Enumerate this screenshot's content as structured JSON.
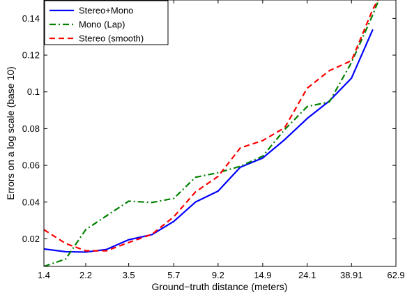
{
  "chart_data": {
    "type": "line",
    "title": "",
    "xlabel": "Ground−truth distance (meters)",
    "ylabel": "Errors on a log scale (base 10)",
    "x_scale": "log",
    "xlim": [
      1.4,
      62.9
    ],
    "ylim": [
      0.005,
      0.15
    ],
    "x_ticks": [
      1.4,
      2.2,
      3.5,
      5.7,
      9.2,
      14.9,
      24.1,
      38.91,
      62.9
    ],
    "x_tick_labels": [
      "1.4",
      "2.2",
      "3.5",
      "5.7",
      "9.2",
      "14.9",
      "24.1",
      "38.91",
      "62.9"
    ],
    "y_ticks": [
      0.02,
      0.04,
      0.06,
      0.08,
      0.1,
      0.12,
      0.14
    ],
    "y_tick_labels": [
      "0.02",
      "0.04",
      "0.06",
      "0.08",
      "0.1",
      "0.12",
      "0.14"
    ],
    "grid": false,
    "legend_position": "top-left",
    "series": [
      {
        "name": "Stereo+Mono",
        "color": "#0000ff",
        "dash": "solid",
        "x": [
          1.4,
          1.77,
          2.2,
          2.75,
          3.5,
          4.5,
          5.7,
          7.2,
          9.2,
          11.7,
          14.9,
          18.9,
          24.1,
          30.6,
          38.91,
          49.0
        ],
        "y": [
          0.0145,
          0.013,
          0.0128,
          0.0142,
          0.0195,
          0.0223,
          0.0295,
          0.04,
          0.046,
          0.059,
          0.064,
          0.074,
          0.0855,
          0.095,
          0.1075,
          0.134
        ]
      },
      {
        "name": "Mono (Lap)",
        "color": "#008000",
        "dash": "dashdot",
        "x": [
          1.4,
          1.77,
          2.2,
          2.75,
          3.5,
          4.5,
          5.7,
          7.2,
          9.2,
          11.7,
          14.9,
          18.9,
          24.1,
          30.6,
          38.91,
          49.0,
          53.0
        ],
        "y": [
          0.005,
          0.009,
          0.025,
          0.0325,
          0.0405,
          0.0398,
          0.042,
          0.0535,
          0.056,
          0.0595,
          0.065,
          0.0795,
          0.092,
          0.0945,
          0.116,
          0.142,
          0.152
        ]
      },
      {
        "name": "Stereo (smooth)",
        "color": "#ff0000",
        "dash": "dashed",
        "x": [
          1.4,
          1.77,
          2.2,
          2.75,
          3.5,
          4.5,
          5.7,
          7.2,
          9.2,
          11.7,
          14.9,
          18.9,
          24.1,
          30.6,
          38.91,
          49.0,
          53.0
        ],
        "y": [
          0.025,
          0.0175,
          0.0135,
          0.0135,
          0.018,
          0.0225,
          0.032,
          0.0455,
          0.054,
          0.0695,
          0.0735,
          0.0805,
          0.102,
          0.1115,
          0.117,
          0.145,
          0.152
        ]
      }
    ]
  }
}
